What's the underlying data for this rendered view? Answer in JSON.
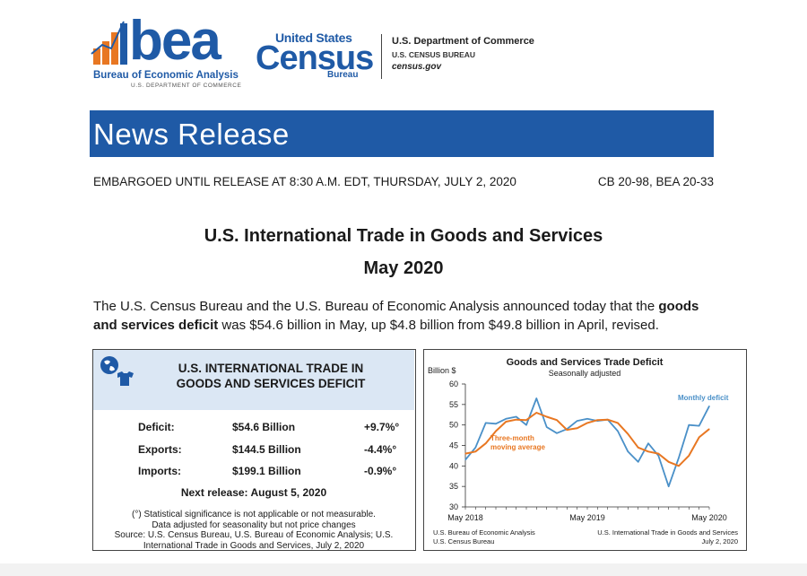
{
  "header": {
    "bea_word": "bea",
    "bea_name": "Bureau of Economic Analysis",
    "bea_dept": "U.S. DEPARTMENT OF COMMERCE",
    "census_us": "United States",
    "census_word": "Census",
    "census_bureau": "Bureau",
    "doc_dept": "U.S. Department of Commerce",
    "doc_bureau": "U.S. CENSUS BUREAU",
    "doc_url": "census.gov",
    "colors": {
      "brand_blue": "#1f5aa6",
      "bea_orange": "#e87722"
    }
  },
  "banner": {
    "title": "News Release"
  },
  "release": {
    "embargo": "EMBARGOED UNTIL RELEASE AT 8:30 A.M. EDT, THURSDAY, JULY 2, 2020",
    "ids": "CB 20-98, BEA 20-33"
  },
  "title": {
    "main": "U.S. International Trade in Goods and Services",
    "period": "May 2020"
  },
  "lead": {
    "part1": "The U.S. Census Bureau and the U.S. Bureau of Economic Analysis announced today that the ",
    "bold": "goods and services deficit",
    "part2": " was $54.6 billion in May, up $4.8 billion from $49.8 billion in April, revised."
  },
  "summary_box": {
    "icon": "globe-icon",
    "title_line1": "U.S. INTERNATIONAL TRADE IN",
    "title_line2": "GOODS AND SERVICES DEFICIT",
    "rows": [
      {
        "label": "Deficit:",
        "value": "$54.6 Billion",
        "change": "+9.7%°"
      },
      {
        "label": "Exports:",
        "value": "$144.5 Billion",
        "change": "-4.4%°"
      },
      {
        "label": "Imports:",
        "value": "$199.1 Billion",
        "change": "-0.9%°"
      }
    ],
    "next_release": "Next release: August 5, 2020",
    "note1": "(°) Statistical significance is not applicable or not measurable.",
    "note2": "Data adjusted for seasonality but not price changes",
    "note3": "Source: U.S. Census Bureau, U.S. Bureau of Economic Analysis; U.S.",
    "note4": "International Trade in Goods and Services, July 2, 2020"
  },
  "chart_data": {
    "type": "line",
    "title": "Goods and Services Trade Deficit",
    "subtitle": "Seasonally adjusted",
    "ylabel": "Billion $",
    "ylim": [
      30,
      60
    ],
    "yticks": [
      30,
      35,
      40,
      45,
      50,
      55,
      60
    ],
    "x_tick_labels": [
      "May 2018",
      "May 2019",
      "May 2020"
    ],
    "x_tick_index": [
      0,
      12,
      24
    ],
    "series": [
      {
        "name": "Monthly deficit",
        "color": "#4a90c8",
        "values": [
          41.5,
          44.5,
          50.5,
          50.3,
          51.5,
          52.0,
          50.0,
          56.5,
          49.5,
          48.0,
          49.0,
          51.0,
          51.5,
          51.0,
          51.3,
          48.5,
          43.5,
          41.0,
          45.5,
          42.5,
          35.0,
          42.0,
          50.0,
          49.8,
          54.6
        ]
      },
      {
        "name": "Three-month moving average",
        "color": "#e87722",
        "values": [
          43.0,
          43.5,
          45.5,
          48.5,
          50.8,
          51.3,
          51.2,
          53.0,
          52.0,
          51.2,
          48.8,
          49.2,
          50.5,
          51.2,
          51.3,
          50.5,
          47.8,
          44.5,
          43.5,
          43.0,
          41.0,
          40.0,
          42.5,
          47.0,
          49.0
        ]
      }
    ],
    "source_left_1": "U.S. Bureau of Economic Analysis",
    "source_left_2": "U.S. Census Bureau",
    "source_right_1": "U.S. International Trade in Goods and Services",
    "source_right_2": "July 2, 2020"
  }
}
